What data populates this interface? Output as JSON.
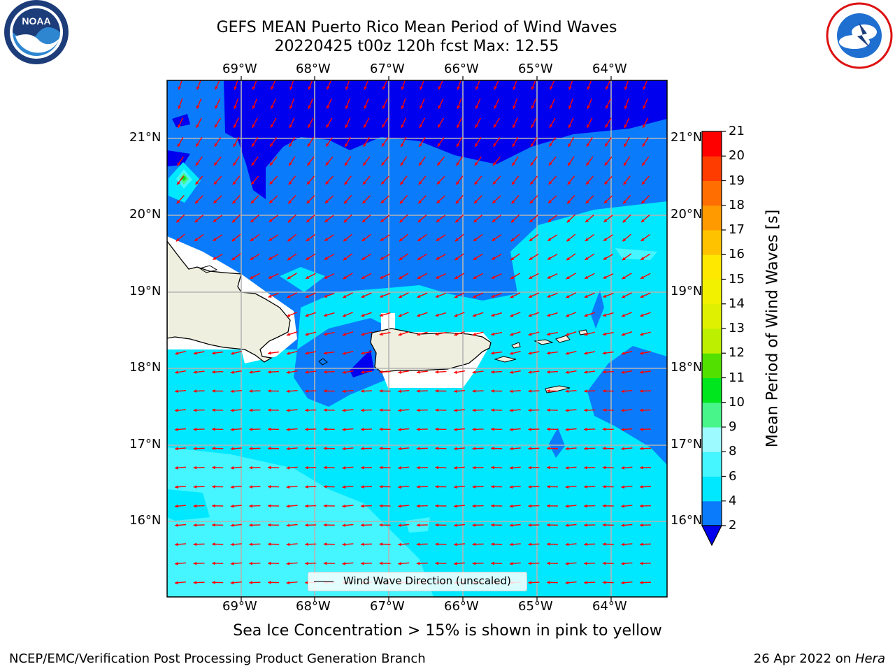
{
  "title_line1": "GEFS MEAN Puerto Rico Mean Period of Wind Waves",
  "title_line2": "20220425 t00z 120h fcst   Max: 12.55",
  "lon_labels": [
    "69°W",
    "68°W",
    "67°W",
    "66°W",
    "65°W",
    "64°W"
  ],
  "lat_labels": [
    "21°N",
    "20°N",
    "19°N",
    "18°N",
    "17°N",
    "16°N"
  ],
  "legend_label": "Wind Wave Direction (unscaled)",
  "colorbar": {
    "label": "Mean Period of Wind Waves [s]",
    "ticks": [
      "2",
      "4",
      "6",
      "8",
      "9",
      "10",
      "11",
      "12",
      "13",
      "14",
      "15",
      "16",
      "17",
      "18",
      "19",
      "20",
      "21"
    ],
    "colors": [
      "#0a7cfb",
      "#00e8ff",
      "#45f5ff",
      "#9dfaff",
      "#48f58a",
      "#00e61e",
      "#52e000",
      "#bcf000",
      "#dff000",
      "#f2f200",
      "#ffe800",
      "#ffc200",
      "#ff9a00",
      "#ff6e00",
      "#ff3c00",
      "#ff0000"
    ],
    "extend_color": "#0000ee"
  },
  "sea_ice_note": "Sea Ice Concentration > 15% is shown in pink to yellow",
  "footer_left": "NCEP/EMC/Verification Post Processing Product Generation Branch",
  "footer_right_date": "26 Apr 2022 on ",
  "footer_right_host": "Hera",
  "logos": {
    "left": "noaa-logo",
    "right": "nws-logo"
  }
}
